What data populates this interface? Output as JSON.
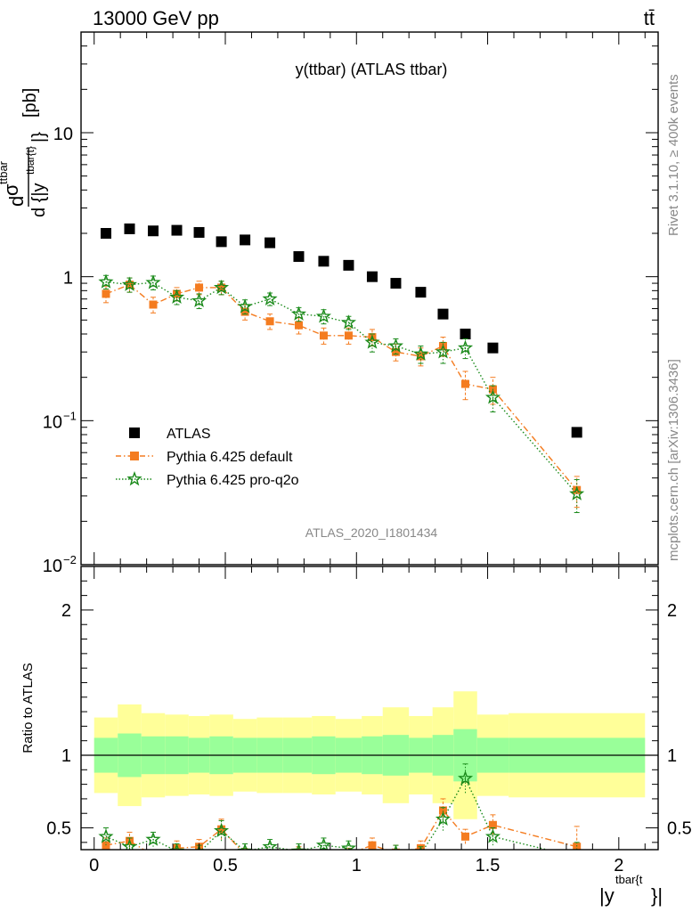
{
  "header": {
    "left": "13000 GeV pp",
    "right": "tt̄"
  },
  "side_labels": {
    "rivet": "Rivet 3.1.10, ≥ 400k events",
    "mcplots": "mcplots.cern.ch [arXiv:1306.3436]"
  },
  "chart_data": [
    {
      "type": "scatter",
      "title": "y(ttbar) (ATLAS ttbar)",
      "analysis_id": "ATLAS_2020_I1801434",
      "ylabel": "dσ^ttbar / d{|y^tbar{t}|} [pb]",
      "yscale": "log",
      "ylim": [
        0.01,
        50
      ],
      "xlim": [
        -0.05,
        2.15
      ],
      "legend_position": "lower-left",
      "yticks": [
        {
          "v": 0.01,
          "base": "10",
          "exp": "−2"
        },
        {
          "v": 0.1,
          "base": "10",
          "exp": "−1"
        },
        {
          "v": 1,
          "base": "1",
          "exp": ""
        },
        {
          "v": 10,
          "base": "10",
          "exp": ""
        }
      ],
      "series": [
        {
          "name": "ATLAS",
          "color": "#000000",
          "marker": "square",
          "x": [
            0.045,
            0.135,
            0.225,
            0.315,
            0.4,
            0.485,
            0.575,
            0.67,
            0.78,
            0.875,
            0.97,
            1.06,
            1.15,
            1.245,
            1.33,
            1.415,
            1.52,
            1.84
          ],
          "y": [
            2.0,
            2.15,
            2.08,
            2.1,
            2.03,
            1.75,
            1.8,
            1.72,
            1.38,
            1.28,
            1.2,
            1.0,
            0.9,
            0.78,
            0.55,
            0.4,
            0.32,
            0.083
          ]
        },
        {
          "name": "Pythia 6.425 default",
          "color": "#f47c20",
          "marker": "square",
          "line": "dashdot",
          "x": [
            0.045,
            0.135,
            0.225,
            0.315,
            0.4,
            0.485,
            0.575,
            0.67,
            0.78,
            0.875,
            0.97,
            1.06,
            1.15,
            1.245,
            1.33,
            1.415,
            1.52,
            1.84
          ],
          "y": [
            0.76,
            0.88,
            0.64,
            0.76,
            0.84,
            0.84,
            0.57,
            0.49,
            0.46,
            0.39,
            0.39,
            0.38,
            0.3,
            0.28,
            0.33,
            0.18,
            0.165,
            0.033
          ],
          "err": [
            0.1,
            0.1,
            0.08,
            0.08,
            0.09,
            0.09,
            0.07,
            0.06,
            0.06,
            0.05,
            0.05,
            0.05,
            0.04,
            0.04,
            0.05,
            0.04,
            0.035,
            0.008
          ]
        },
        {
          "name": "Pythia 6.425 pro-q2o",
          "color": "#1a8a1a",
          "marker": "star",
          "line": "dotted",
          "x": [
            0.045,
            0.135,
            0.225,
            0.315,
            0.4,
            0.485,
            0.575,
            0.67,
            0.78,
            0.875,
            0.97,
            1.06,
            1.15,
            1.245,
            1.33,
            1.415,
            1.52,
            1.84
          ],
          "y": [
            0.92,
            0.88,
            0.91,
            0.72,
            0.68,
            0.84,
            0.62,
            0.7,
            0.55,
            0.53,
            0.48,
            0.35,
            0.33,
            0.29,
            0.3,
            0.32,
            0.145,
            0.031
          ],
          "err": [
            0.1,
            0.1,
            0.1,
            0.08,
            0.08,
            0.09,
            0.07,
            0.07,
            0.06,
            0.06,
            0.05,
            0.05,
            0.04,
            0.04,
            0.05,
            0.05,
            0.03,
            0.008
          ]
        }
      ]
    },
    {
      "type": "scatter",
      "ylabel": "Ratio to ATLAS",
      "xlabel": "|y^tbar{t}|",
      "xlim": [
        -0.05,
        2.15
      ],
      "ylim": [
        0.35,
        2.3
      ],
      "yticks": [
        0.5,
        1,
        2
      ],
      "xticks": [
        0,
        0.5,
        1,
        1.5,
        2
      ],
      "reference_line": 1,
      "bands": {
        "edges": [
          0,
          0.09,
          0.18,
          0.27,
          0.36,
          0.44,
          0.53,
          0.62,
          0.72,
          0.83,
          0.92,
          1.02,
          1.1,
          1.2,
          1.29,
          1.37,
          1.46,
          1.58,
          2.1
        ],
        "inner": [
          [
            0.88,
            1.12
          ],
          [
            0.85,
            1.15
          ],
          [
            0.87,
            1.13
          ],
          [
            0.87,
            1.13
          ],
          [
            0.88,
            1.12
          ],
          [
            0.87,
            1.13
          ],
          [
            0.88,
            1.12
          ],
          [
            0.88,
            1.12
          ],
          [
            0.88,
            1.12
          ],
          [
            0.87,
            1.13
          ],
          [
            0.88,
            1.12
          ],
          [
            0.87,
            1.13
          ],
          [
            0.86,
            1.14
          ],
          [
            0.88,
            1.12
          ],
          [
            0.86,
            1.14
          ],
          [
            0.82,
            1.18
          ],
          [
            0.88,
            1.12
          ],
          [
            0.88,
            1.12
          ]
        ],
        "outer": [
          [
            0.74,
            1.26
          ],
          [
            0.65,
            1.35
          ],
          [
            0.71,
            1.29
          ],
          [
            0.72,
            1.28
          ],
          [
            0.73,
            1.27
          ],
          [
            0.72,
            1.28
          ],
          [
            0.75,
            1.25
          ],
          [
            0.74,
            1.26
          ],
          [
            0.74,
            1.26
          ],
          [
            0.73,
            1.27
          ],
          [
            0.75,
            1.25
          ],
          [
            0.73,
            1.27
          ],
          [
            0.67,
            1.33
          ],
          [
            0.73,
            1.27
          ],
          [
            0.67,
            1.33
          ],
          [
            0.56,
            1.44
          ],
          [
            0.72,
            1.28
          ],
          [
            0.71,
            1.29
          ]
        ],
        "inner_color": "#99ff99",
        "outer_color": "#ffff99"
      },
      "series": [
        {
          "name": "Pythia 6.425 default",
          "color": "#f47c20",
          "marker": "square",
          "line": "dashdot",
          "x": [
            0.045,
            0.135,
            0.225,
            0.315,
            0.4,
            0.485,
            0.575,
            0.67,
            0.78,
            0.875,
            0.97,
            1.06,
            1.15,
            1.245,
            1.33,
            1.415,
            1.52,
            1.84
          ],
          "y": [
            0.38,
            0.41,
            0.31,
            0.36,
            0.37,
            0.49,
            0.32,
            0.29,
            0.33,
            0.3,
            0.32,
            0.38,
            0.33,
            0.36,
            0.62,
            0.44,
            0.52,
            0.37
          ],
          "err": [
            0.05,
            0.06,
            0.04,
            0.05,
            0.05,
            0.07,
            0.04,
            0.04,
            0.04,
            0.04,
            0.04,
            0.05,
            0.05,
            0.05,
            0.08,
            0.05,
            0.07,
            0.14
          ]
        },
        {
          "name": "Pythia 6.425 pro-q2o",
          "color": "#1a8a1a",
          "marker": "star",
          "line": "dotted",
          "x": [
            0.045,
            0.135,
            0.225,
            0.315,
            0.4,
            0.485,
            0.575,
            0.67,
            0.78,
            0.875,
            0.97,
            1.06,
            1.15,
            1.245,
            1.33,
            1.415,
            1.52,
            1.84
          ],
          "y": [
            0.44,
            0.37,
            0.42,
            0.34,
            0.33,
            0.48,
            0.34,
            0.37,
            0.34,
            0.38,
            0.36,
            0.3,
            0.33,
            0.32,
            0.56,
            0.84,
            0.44,
            0.3
          ],
          "err": [
            0.06,
            0.06,
            0.05,
            0.05,
            0.05,
            0.07,
            0.05,
            0.05,
            0.05,
            0.05,
            0.05,
            0.05,
            0.05,
            0.05,
            0.08,
            0.1,
            0.06,
            0.1
          ]
        }
      ]
    }
  ]
}
